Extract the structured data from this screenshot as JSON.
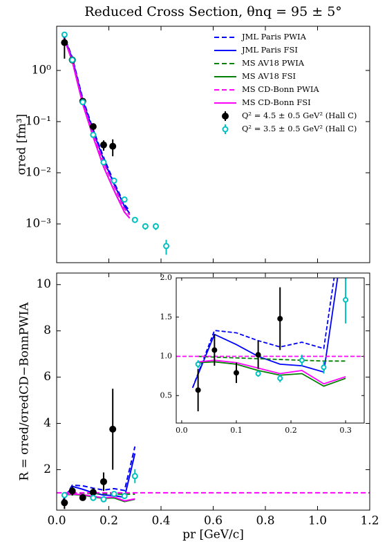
{
  "chart_data": [
    {
      "type": "line",
      "title": "Reduced Cross Section, θnq = 95 ± 5°",
      "y_label": "σred [fm³]",
      "log_y": true,
      "legend": "upper right",
      "show_xtick_labels": false,
      "xlim": [
        0,
        1.2
      ],
      "xticks": [
        0,
        0.2,
        0.4,
        0.6,
        0.8,
        1.0,
        1.2
      ],
      "ylim": [
        0.000175,
        7.3
      ],
      "yticks": [
        {
          "value": 1,
          "label": "10⁰"
        },
        {
          "value": 0.1,
          "label": "10⁻¹"
        },
        {
          "value": 0.01,
          "label": "10⁻²"
        },
        {
          "value": 0.001,
          "label": "10⁻³"
        }
      ],
      "series": [
        {
          "name": "JML Paris PWIA",
          "color": "#0000ff",
          "linestyle": "dashed",
          "x": [
            0.025,
            0.06,
            0.1,
            0.14,
            0.18,
            0.22,
            0.26,
            0.28
          ],
          "values": [
            5.2,
            1.8,
            0.28,
            0.07,
            0.02,
            0.0065,
            0.0024,
            0.0018
          ]
        },
        {
          "name": "JML Paris FSI",
          "color": "#0000ff",
          "linestyle": "solid",
          "x": [
            0.025,
            0.06,
            0.1,
            0.14,
            0.18,
            0.22,
            0.26,
            0.28
          ],
          "values": [
            5.0,
            1.7,
            0.26,
            0.065,
            0.018,
            0.006,
            0.0022,
            0.0016
          ]
        },
        {
          "name": "MS AV18 PWIA",
          "color": "#007f00",
          "linestyle": "dashed",
          "x": [
            0.025,
            0.06,
            0.1,
            0.14,
            0.18,
            0.22,
            0.26,
            0.28
          ],
          "values": [
            5.0,
            1.6,
            0.24,
            0.058,
            0.016,
            0.0055,
            0.002,
            0.0015
          ]
        },
        {
          "name": "MS AV18 FSI",
          "color": "#007f00",
          "linestyle": "solid",
          "x": [
            0.025,
            0.06,
            0.1,
            0.14,
            0.18,
            0.22,
            0.26,
            0.28
          ],
          "values": [
            4.8,
            1.5,
            0.22,
            0.05,
            0.013,
            0.0045,
            0.0017,
            0.0013
          ]
        },
        {
          "name": "MS CD-Bonn PWIA",
          "color": "#ff00ff",
          "linestyle": "dashed",
          "x": [
            0.025,
            0.06,
            0.1,
            0.14,
            0.18,
            0.22,
            0.26,
            0.28
          ],
          "values": [
            5.0,
            1.6,
            0.24,
            0.058,
            0.016,
            0.0055,
            0.002,
            0.0015
          ]
        },
        {
          "name": "MS CD-Bonn FSI",
          "color": "#ff00ff",
          "linestyle": "solid",
          "x": [
            0.025,
            0.06,
            0.1,
            0.14,
            0.18,
            0.22,
            0.26,
            0.28
          ],
          "values": [
            4.8,
            1.5,
            0.22,
            0.05,
            0.013,
            0.0045,
            0.0017,
            0.0013
          ]
        },
        {
          "name": "Q² = 4.5 ± 0.5 GeV² (Hall C)",
          "color": "#000000",
          "marker": "filled",
          "x": [
            0.03,
            0.06,
            0.1,
            0.14,
            0.18,
            0.215
          ],
          "values": [
            3.5,
            1.6,
            0.25,
            0.08,
            0.035,
            0.033
          ],
          "err": [
            1.8,
            0.2,
            0.03,
            0.012,
            0.008,
            0.012
          ]
        },
        {
          "name": "Q² = 3.5 ± 0.5 GeV² (Hall C)",
          "color": "#00bfbf",
          "marker": "open",
          "x": [
            0.03,
            0.06,
            0.1,
            0.14,
            0.18,
            0.22,
            0.26,
            0.3,
            0.34,
            0.38,
            0.42
          ],
          "values": [
            5.0,
            1.6,
            0.24,
            0.055,
            0.016,
            0.007,
            0.003,
            0.0012,
            0.0009,
            0.0009,
            0.00037
          ],
          "err": [
            0.4,
            0.1,
            0.015,
            0.004,
            0.0012,
            0.0006,
            0.0003,
            0.00015,
            0.00013,
            0.00014,
            0.00012
          ]
        }
      ]
    },
    {
      "type": "line",
      "y_label": "R = σred/σredCD−BonnPWIA",
      "x_label": "pr [GeV/c]",
      "xlim": [
        0,
        1.2
      ],
      "xticks": [
        {
          "value": 0,
          "label": "0.0"
        },
        0.2,
        0.4,
        0.6,
        0.8,
        {
          "value": 1,
          "label": "1.0"
        },
        1.2
      ],
      "ylim": [
        0.25,
        10.5
      ],
      "yticks": [
        2,
        4,
        6,
        8,
        10
      ],
      "series": [
        {
          "color": "#0000ff",
          "linestyle": "dashed",
          "x": [
            0.02,
            0.06,
            0.1,
            0.14,
            0.18,
            0.22,
            0.26,
            0.3
          ],
          "values": [
            0.6,
            1.33,
            1.3,
            1.2,
            1.12,
            1.18,
            1.1,
            3.0
          ]
        },
        {
          "color": "#0000ff",
          "linestyle": "solid",
          "x": [
            0.02,
            0.06,
            0.1,
            0.14,
            0.18,
            0.22,
            0.26,
            0.3
          ],
          "values": [
            0.6,
            1.28,
            1.15,
            1.0,
            0.9,
            0.88,
            0.8,
            2.7
          ]
        },
        {
          "color": "#007f00",
          "linestyle": "dashed",
          "x": [
            0.03,
            0.06,
            0.1,
            0.14,
            0.18,
            0.22,
            0.26,
            0.3
          ],
          "values": [
            1.0,
            0.99,
            0.98,
            0.97,
            0.96,
            0.95,
            0.94,
            0.94
          ]
        },
        {
          "color": "#007f00",
          "linestyle": "solid",
          "x": [
            0.03,
            0.06,
            0.1,
            0.14,
            0.18,
            0.22,
            0.26,
            0.3
          ],
          "values": [
            0.92,
            0.93,
            0.9,
            0.82,
            0.76,
            0.78,
            0.62,
            0.72
          ]
        },
        {
          "color": "#ff00ff",
          "linestyle": "dashed",
          "x": [
            0,
            1.2
          ],
          "values": [
            1,
            1
          ]
        },
        {
          "color": "#ff00ff",
          "linestyle": "solid",
          "x": [
            0.03,
            0.06,
            0.1,
            0.14,
            0.18,
            0.22,
            0.26,
            0.3
          ],
          "values": [
            0.93,
            0.95,
            0.92,
            0.85,
            0.78,
            0.82,
            0.65,
            0.74
          ]
        },
        {
          "color": "#000000",
          "marker": "filled",
          "x": [
            0.03,
            0.06,
            0.1,
            0.14,
            0.18,
            0.215
          ],
          "values": [
            0.57,
            1.08,
            0.79,
            1.02,
            1.48,
            3.75
          ],
          "err": [
            0.27,
            0.2,
            0.13,
            0.18,
            0.4,
            1.75
          ]
        },
        {
          "color": "#00bfbf",
          "marker": "open",
          "x": [
            0.03,
            0.14,
            0.18,
            0.22,
            0.26,
            0.3
          ],
          "values": [
            0.9,
            0.78,
            0.72,
            0.95,
            0.86,
            1.72
          ],
          "err": [
            0.05,
            0.04,
            0.05,
            0.07,
            0.08,
            0.3
          ]
        }
      ]
    },
    {
      "type": "line",
      "inset": true,
      "xlim": [
        -0.01,
        0.334
      ],
      "xticks": [
        {
          "value": 0,
          "label": "0.0"
        },
        0.1,
        0.2,
        0.3
      ],
      "ylim": [
        0.15,
        2.0
      ],
      "yticks": [
        0.5,
        {
          "value": 1,
          "label": "1.0"
        },
        1.5,
        {
          "value": 2,
          "label": "2.0"
        }
      ],
      "series": [
        {
          "color": "#0000ff",
          "linestyle": "dashed",
          "x": [
            0.02,
            0.06,
            0.1,
            0.14,
            0.18,
            0.22,
            0.26,
            0.3
          ],
          "values": [
            0.6,
            1.33,
            1.3,
            1.2,
            1.12,
            1.18,
            1.1,
            3.0
          ]
        },
        {
          "color": "#0000ff",
          "linestyle": "solid",
          "x": [
            0.02,
            0.06,
            0.1,
            0.14,
            0.18,
            0.22,
            0.26,
            0.3
          ],
          "values": [
            0.6,
            1.28,
            1.15,
            1.0,
            0.9,
            0.88,
            0.8,
            2.7
          ]
        },
        {
          "color": "#007f00",
          "linestyle": "dashed",
          "x": [
            0.03,
            0.06,
            0.1,
            0.14,
            0.18,
            0.22,
            0.26,
            0.3
          ],
          "values": [
            1.0,
            0.99,
            0.98,
            0.97,
            0.96,
            0.95,
            0.94,
            0.94
          ]
        },
        {
          "color": "#007f00",
          "linestyle": "solid",
          "x": [
            0.03,
            0.06,
            0.1,
            0.14,
            0.18,
            0.22,
            0.26,
            0.3
          ],
          "values": [
            0.92,
            0.93,
            0.9,
            0.82,
            0.76,
            0.78,
            0.62,
            0.72
          ]
        },
        {
          "color": "#ff00ff",
          "linestyle": "dashed",
          "x": [
            -0.01,
            0.334
          ],
          "values": [
            1,
            1
          ]
        },
        {
          "color": "#ff00ff",
          "linestyle": "solid",
          "x": [
            0.03,
            0.06,
            0.1,
            0.14,
            0.18,
            0.22,
            0.26,
            0.3
          ],
          "values": [
            0.93,
            0.95,
            0.92,
            0.85,
            0.78,
            0.82,
            0.65,
            0.74
          ]
        },
        {
          "color": "#000000",
          "marker": "filled",
          "x": [
            0.03,
            0.06,
            0.1,
            0.14,
            0.18
          ],
          "values": [
            0.57,
            1.08,
            0.79,
            1.02,
            1.48
          ],
          "err": [
            0.27,
            0.2,
            0.13,
            0.18,
            0.4
          ]
        },
        {
          "color": "#00bfbf",
          "marker": "open",
          "x": [
            0.03,
            0.14,
            0.18,
            0.22,
            0.26,
            0.3
          ],
          "values": [
            0.9,
            0.78,
            0.72,
            0.95,
            0.86,
            1.72
          ],
          "err": [
            0.05,
            0.04,
            0.05,
            0.07,
            0.08,
            0.3
          ]
        }
      ]
    }
  ]
}
